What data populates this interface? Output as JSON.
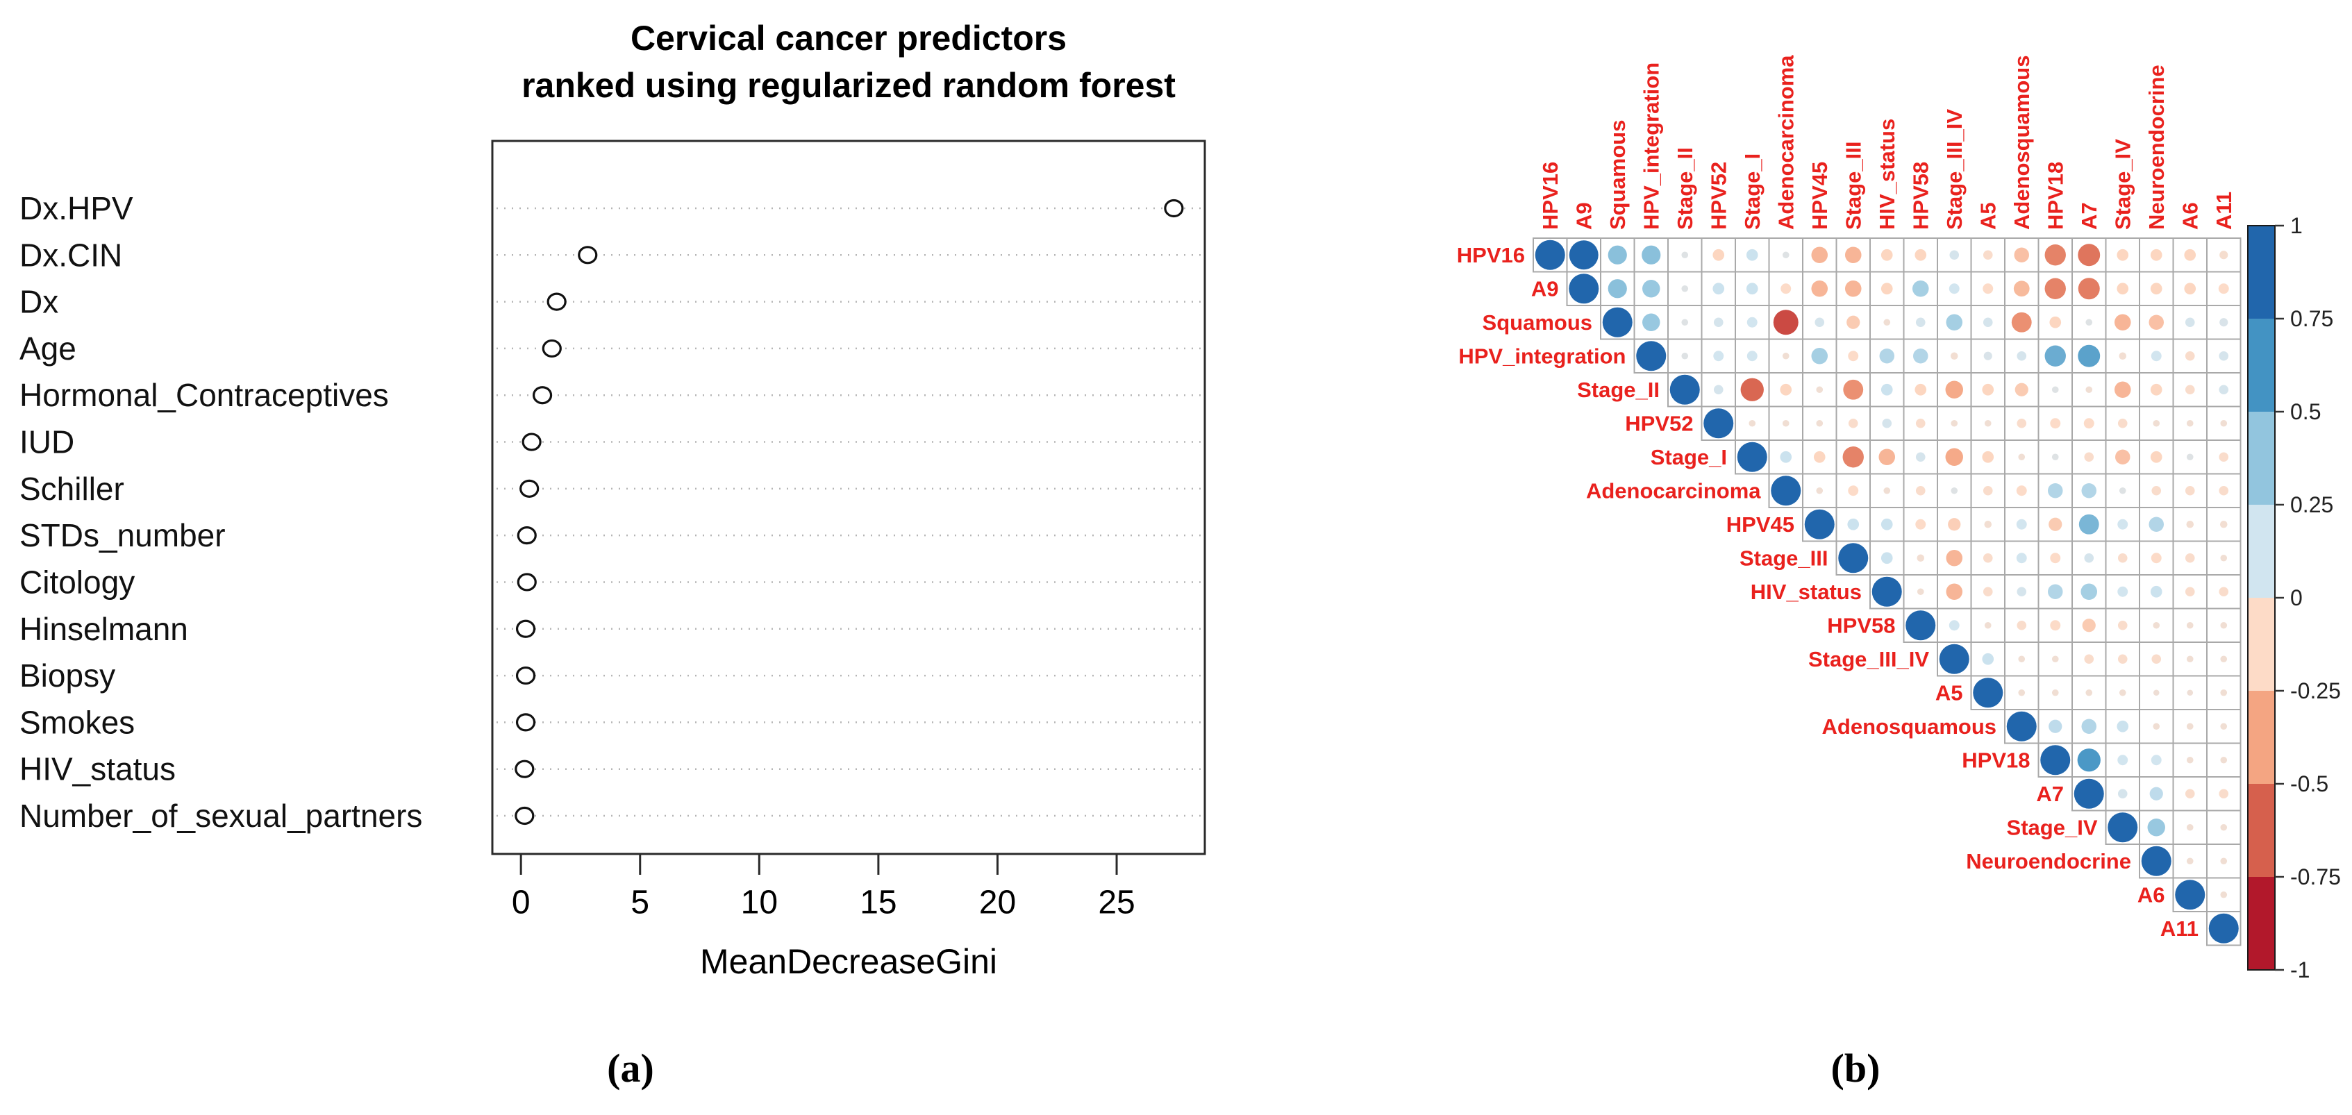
{
  "figure": {
    "background": "#ffffff",
    "caption_a": "(a)",
    "caption_b": "(b)"
  },
  "chart_data": [
    {
      "id": "dotchart",
      "type": "scatter",
      "title_lines": [
        "Cervical cancer predictors",
        "ranked using regularized random forest"
      ],
      "xlabel": "MeanDecreaseGini",
      "categories_top_to_bottom": [
        "Dx.HPV",
        "Dx.CIN",
        "Dx",
        "Age",
        "Hormonal_Contraceptives",
        "IUD",
        "Schiller",
        "STDs_number",
        "Citology",
        "Hinselmann",
        "Biopsy",
        "Smokes",
        "HIV_status",
        "Number_of_sexual_partners"
      ],
      "values": [
        27.4,
        2.8,
        1.5,
        1.3,
        0.9,
        0.45,
        0.35,
        0.25,
        0.25,
        0.2,
        0.2,
        0.2,
        0.15,
        0.15
      ],
      "xticks": [
        0,
        5,
        10,
        15,
        20,
        25
      ],
      "xlim": [
        -1.2,
        28.7
      ],
      "grid": "dotted-row-guides",
      "marker": "open-circle",
      "marker_color": "#111111",
      "guide_color": "#b5b5b5"
    },
    {
      "id": "correlogram",
      "type": "heatmap",
      "layout": "upper-triangle-with-diagonal",
      "value_range": [
        -1,
        1
      ],
      "label_color": "#e9211d",
      "grid_color": "#a9a9a9",
      "variables": [
        "HPV16",
        "A9",
        "Squamous",
        "HPV_integration",
        "Stage_II",
        "HPV52",
        "Stage_I",
        "Adenocarcinoma",
        "HPV45",
        "Stage_III",
        "HIV_status",
        "HPV58",
        "Stage_III_IV",
        "A5",
        "Adenosquamous",
        "HPV18",
        "A7",
        "Stage_IV",
        "Neuroendocrine",
        "A6",
        "A11"
      ],
      "diagonal_value": 1,
      "upper_triangle_rows": [
        [
          0.95,
          0.4,
          0.4,
          0.05,
          -0.15,
          0.15,
          0.05,
          -0.3,
          -0.3,
          -0.15,
          -0.15,
          0.1,
          -0.1,
          -0.25,
          -0.5,
          -0.55,
          -0.15,
          -0.15,
          -0.15,
          -0.08
        ],
        [
          0.4,
          0.35,
          0.05,
          0.15,
          0.15,
          -0.12,
          -0.3,
          -0.3,
          -0.15,
          0.3,
          0.12,
          -0.12,
          -0.28,
          -0.5,
          -0.52,
          -0.15,
          -0.15,
          -0.15,
          -0.12
        ],
        [
          0.35,
          0.05,
          0.1,
          0.12,
          -0.7,
          0.1,
          -0.2,
          -0.05,
          0.1,
          0.3,
          0.1,
          -0.45,
          -0.15,
          0.05,
          -0.3,
          -0.25,
          0.1,
          0.08
        ],
        [
          0.05,
          0.12,
          0.12,
          -0.05,
          0.3,
          -0.12,
          0.25,
          0.25,
          -0.06,
          0.08,
          0.1,
          0.5,
          0.55,
          -0.06,
          0.12,
          -0.1,
          0.1
        ],
        [
          0.1,
          -0.6,
          -0.15,
          -0.05,
          -0.45,
          0.15,
          -0.15,
          -0.35,
          -0.15,
          -0.2,
          0.05,
          -0.05,
          -0.3,
          -0.15,
          -0.1,
          0.1
        ],
        [
          -0.05,
          -0.05,
          -0.05,
          -0.1,
          0.1,
          -0.1,
          -0.05,
          -0.05,
          -0.1,
          -0.12,
          -0.12,
          -0.1,
          -0.05,
          -0.05,
          -0.05
        ],
        [
          0.15,
          -0.15,
          -0.5,
          -0.3,
          0.1,
          -0.35,
          -0.15,
          -0.05,
          0.05,
          -0.1,
          -0.25,
          -0.15,
          0.05,
          -0.1
        ],
        [
          -0.05,
          -0.12,
          -0.05,
          -0.1,
          0.05,
          -0.1,
          -0.12,
          0.25,
          0.25,
          0.05,
          -0.1,
          -0.1,
          -0.1
        ],
        [
          0.15,
          0.15,
          -0.12,
          -0.18,
          -0.06,
          0.12,
          -0.2,
          0.45,
          0.12,
          0.25,
          -0.06,
          -0.06
        ],
        [
          0.15,
          -0.06,
          -0.3,
          -0.1,
          0.12,
          -0.12,
          0.1,
          -0.1,
          -0.12,
          -0.1,
          -0.05
        ],
        [
          -0.05,
          -0.3,
          -0.1,
          0.1,
          0.25,
          0.3,
          0.12,
          0.15,
          -0.1,
          -0.1
        ],
        [
          0.12,
          -0.05,
          -0.1,
          -0.12,
          -0.2,
          -0.1,
          -0.05,
          -0.05,
          -0.05
        ],
        [
          0.15,
          -0.05,
          -0.05,
          -0.1,
          -0.1,
          -0.1,
          -0.05,
          -0.05
        ],
        [
          -0.05,
          -0.05,
          -0.05,
          -0.05,
          -0.04,
          -0.04,
          -0.05
        ],
        [
          0.2,
          0.25,
          0.15,
          -0.05,
          -0.05,
          -0.05
        ],
        [
          0.6,
          0.12,
          0.12,
          -0.05,
          -0.05
        ],
        [
          0.1,
          0.2,
          -0.1,
          -0.1
        ],
        [
          0.35,
          -0.05,
          -0.05
        ],
        [
          -0.05,
          -0.05
        ],
        [
          -0.05
        ],
        []
      ],
      "colorbar": {
        "tick_labels": [
          "1",
          "0.75",
          "0.5",
          "0.25",
          "0",
          "-0.25",
          "-0.5",
          "-0.75",
          "-1"
        ],
        "segment_colors_top_to_bottom": [
          "#2166ac",
          "#4393c3",
          "#92c5de",
          "#d1e5f0",
          "#fddbc7",
          "#f4a582",
          "#d6604d",
          "#b2182b"
        ]
      }
    }
  ]
}
